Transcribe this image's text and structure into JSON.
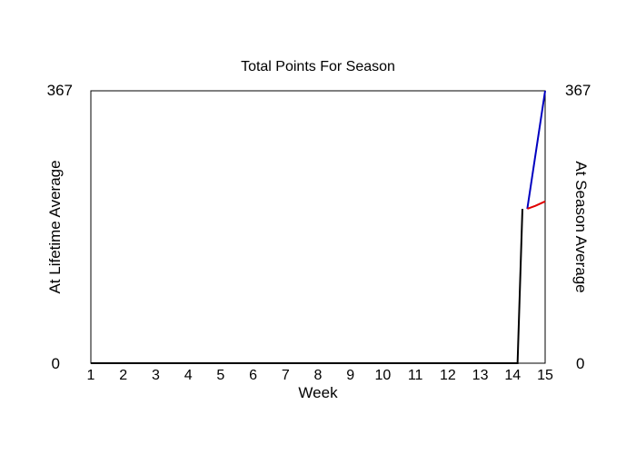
{
  "chart_data": {
    "type": "line",
    "title": "Total Points For Season",
    "xlabel": "Week",
    "ylabel_left": "At Lifetime Average",
    "ylabel_right": "At Season Average",
    "x_ticks": [
      "1",
      "2",
      "3",
      "4",
      "5",
      "6",
      "7",
      "8",
      "9",
      "10",
      "11",
      "12",
      "13",
      "14",
      "15"
    ],
    "xlim": [
      1,
      15
    ],
    "ylim": [
      0,
      367
    ],
    "y_left_ticks": [
      "0",
      "367"
    ],
    "y_right_ticks": [
      "0",
      "367"
    ],
    "colors": {
      "actual": "#000000",
      "lifetime": "#0000c0",
      "season": "#e00000",
      "left_label": "#0000c0",
      "right_label": "#e00000"
    },
    "series": [
      {
        "key": "actual",
        "points": [
          [
            1,
            0
          ],
          [
            14.15,
            0
          ],
          [
            14.15,
            0
          ],
          [
            14.3,
            208
          ]
        ]
      },
      {
        "key": "lifetime",
        "points": [
          [
            14.45,
            208
          ],
          [
            15,
            367
          ]
        ]
      },
      {
        "key": "season",
        "points": [
          [
            14.45,
            208
          ],
          [
            14.7,
            212
          ],
          [
            15,
            218
          ]
        ]
      }
    ]
  }
}
